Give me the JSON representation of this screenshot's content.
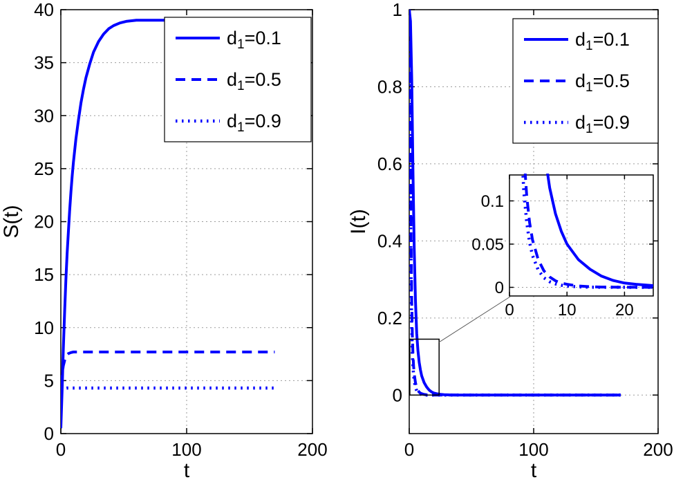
{
  "figure": {
    "background": "#ffffff",
    "line_color": "#0000ff",
    "grid_color": "#9a9a9a"
  },
  "chart_data": [
    {
      "type": "line",
      "title": "",
      "xlabel": "t",
      "ylabel": "S(t)",
      "xlim": [
        0,
        200
      ],
      "ylim": [
        0,
        40
      ],
      "xticks": [
        0,
        100,
        200
      ],
      "yticks": [
        0,
        5,
        10,
        15,
        20,
        25,
        30,
        35,
        40
      ],
      "grid": true,
      "legend": {
        "position": "upper right",
        "entries": [
          {
            "pre": "d",
            "sub": "1",
            "post": "=0.1",
            "style": "solid"
          },
          {
            "pre": "d",
            "sub": "1",
            "post": "=0.5",
            "style": "dashed"
          },
          {
            "pre": "d",
            "sub": "1",
            "post": "=0.9",
            "style": "dotted"
          }
        ]
      },
      "series": [
        {
          "name": "d1=0.1",
          "style": "solid",
          "points": [
            [
              0,
              0.5
            ],
            [
              1,
              4
            ],
            [
              2,
              8
            ],
            [
              3,
              11.5
            ],
            [
              4,
              14.5
            ],
            [
              5,
              17
            ],
            [
              6,
              19
            ],
            [
              7,
              21
            ],
            [
              8,
              22.8
            ],
            [
              9,
              24.3
            ],
            [
              10,
              25.6
            ],
            [
              12,
              27.8
            ],
            [
              14,
              29.6
            ],
            [
              16,
              31.2
            ],
            [
              18,
              32.5
            ],
            [
              20,
              33.6
            ],
            [
              23,
              34.9
            ],
            [
              26,
              36
            ],
            [
              30,
              37
            ],
            [
              34,
              37.7
            ],
            [
              38,
              38.2
            ],
            [
              42,
              38.5
            ],
            [
              47,
              38.75
            ],
            [
              52,
              38.9
            ],
            [
              60,
              39
            ],
            [
              70,
              39
            ],
            [
              85,
              39
            ],
            [
              100,
              39
            ],
            [
              120,
              39
            ],
            [
              140,
              39
            ],
            [
              160,
              39
            ],
            [
              170,
              39
            ]
          ]
        },
        {
          "name": "d1=0.5",
          "style": "dashed",
          "points": [
            [
              0,
              4.6
            ],
            [
              1,
              5.6
            ],
            [
              2,
              6.4
            ],
            [
              3,
              6.9
            ],
            [
              4,
              7.2
            ],
            [
              5,
              7.45
            ],
            [
              6,
              7.55
            ],
            [
              8,
              7.65
            ],
            [
              10,
              7.7
            ],
            [
              15,
              7.7
            ],
            [
              30,
              7.7
            ],
            [
              60,
              7.7
            ],
            [
              100,
              7.7
            ],
            [
              140,
              7.7
            ],
            [
              170,
              7.7
            ]
          ]
        },
        {
          "name": "d1=0.9",
          "style": "dotted",
          "points": [
            [
              0,
              4.1
            ],
            [
              2,
              4.25
            ],
            [
              5,
              4.3
            ],
            [
              10,
              4.3
            ],
            [
              30,
              4.3
            ],
            [
              60,
              4.3
            ],
            [
              100,
              4.3
            ],
            [
              140,
              4.3
            ],
            [
              170,
              4.3
            ]
          ]
        }
      ]
    },
    {
      "type": "line",
      "title": "",
      "xlabel": "t",
      "ylabel": "I(t)",
      "xlim": [
        0,
        200
      ],
      "ylim": [
        -0.1,
        1
      ],
      "xticks": [
        0,
        100,
        200
      ],
      "yticks": [
        0,
        0.2,
        0.4,
        0.6,
        0.8,
        1
      ],
      "grid": true,
      "legend": {
        "position": "upper right",
        "entries": [
          {
            "pre": "d",
            "sub": "1",
            "post": "=0.1",
            "style": "solid"
          },
          {
            "pre": "d",
            "sub": "1",
            "post": "=0.5",
            "style": "dashed"
          },
          {
            "pre": "d",
            "sub": "1",
            "post": "=0.9",
            "style": "dotted"
          }
        ]
      },
      "series": [
        {
          "name": "d1=0.1",
          "style": "solid",
          "points": [
            [
              0,
              1
            ],
            [
              1,
              0.97
            ],
            [
              2,
              0.82
            ],
            [
              3,
              0.58
            ],
            [
              4,
              0.38
            ],
            [
              5,
              0.245
            ],
            [
              6,
              0.16
            ],
            [
              7,
              0.115
            ],
            [
              8,
              0.085
            ],
            [
              9,
              0.065
            ],
            [
              10,
              0.05
            ],
            [
              12,
              0.032
            ],
            [
              14,
              0.021
            ],
            [
              16,
              0.013
            ],
            [
              18,
              0.008
            ],
            [
              20,
              0.005
            ],
            [
              22,
              0.0035
            ],
            [
              25,
              0.002
            ],
            [
              28,
              0.001
            ],
            [
              32,
              0.0005
            ],
            [
              40,
              0.0002
            ],
            [
              60,
              0
            ],
            [
              100,
              0
            ],
            [
              140,
              0
            ],
            [
              170,
              0
            ]
          ]
        },
        {
          "name": "d1=0.5",
          "style": "dashed",
          "points": [
            [
              0,
              1
            ],
            [
              0.5,
              0.93
            ],
            [
              1,
              0.66
            ],
            [
              1.5,
              0.4
            ],
            [
              2,
              0.24
            ],
            [
              2.5,
              0.155
            ],
            [
              3,
              0.105
            ],
            [
              3.5,
              0.075
            ],
            [
              4,
              0.055
            ],
            [
              5,
              0.032
            ],
            [
              6,
              0.019
            ],
            [
              7,
              0.012
            ],
            [
              8,
              0.0075
            ],
            [
              9,
              0.005
            ],
            [
              10,
              0.0035
            ],
            [
              12,
              0.0015
            ],
            [
              14,
              0.0007
            ],
            [
              16,
              0.0003
            ],
            [
              20,
              0.0001
            ],
            [
              30,
              0
            ],
            [
              60,
              0
            ],
            [
              100,
              0
            ],
            [
              140,
              0
            ],
            [
              170,
              0
            ]
          ]
        },
        {
          "name": "d1=0.9",
          "style": "dotted",
          "points": [
            [
              0,
              1
            ],
            [
              0.5,
              0.8
            ],
            [
              1,
              0.5
            ],
            [
              1.5,
              0.29
            ],
            [
              2,
              0.175
            ],
            [
              2.5,
              0.11
            ],
            [
              3,
              0.075
            ],
            [
              3.5,
              0.052
            ],
            [
              4,
              0.037
            ],
            [
              5,
              0.02
            ],
            [
              6,
              0.011
            ],
            [
              7,
              0.0065
            ],
            [
              8,
              0.004
            ],
            [
              9,
              0.0025
            ],
            [
              10,
              0.0015
            ],
            [
              12,
              0.0006
            ],
            [
              14,
              0.0002
            ],
            [
              18,
              0.0001
            ],
            [
              25,
              0
            ],
            [
              60,
              0
            ],
            [
              100,
              0
            ],
            [
              140,
              0
            ],
            [
              170,
              0
            ]
          ]
        }
      ],
      "inset": {
        "xlim": [
          0,
          25
        ],
        "ylim": [
          -0.01,
          0.13
        ],
        "xticks": [
          0,
          10,
          20
        ],
        "yticks": [
          0,
          0.05,
          0.1
        ]
      },
      "zoom_rect": {
        "x": [
          0.5,
          24
        ],
        "y": [
          0,
          0.145
        ]
      }
    }
  ]
}
